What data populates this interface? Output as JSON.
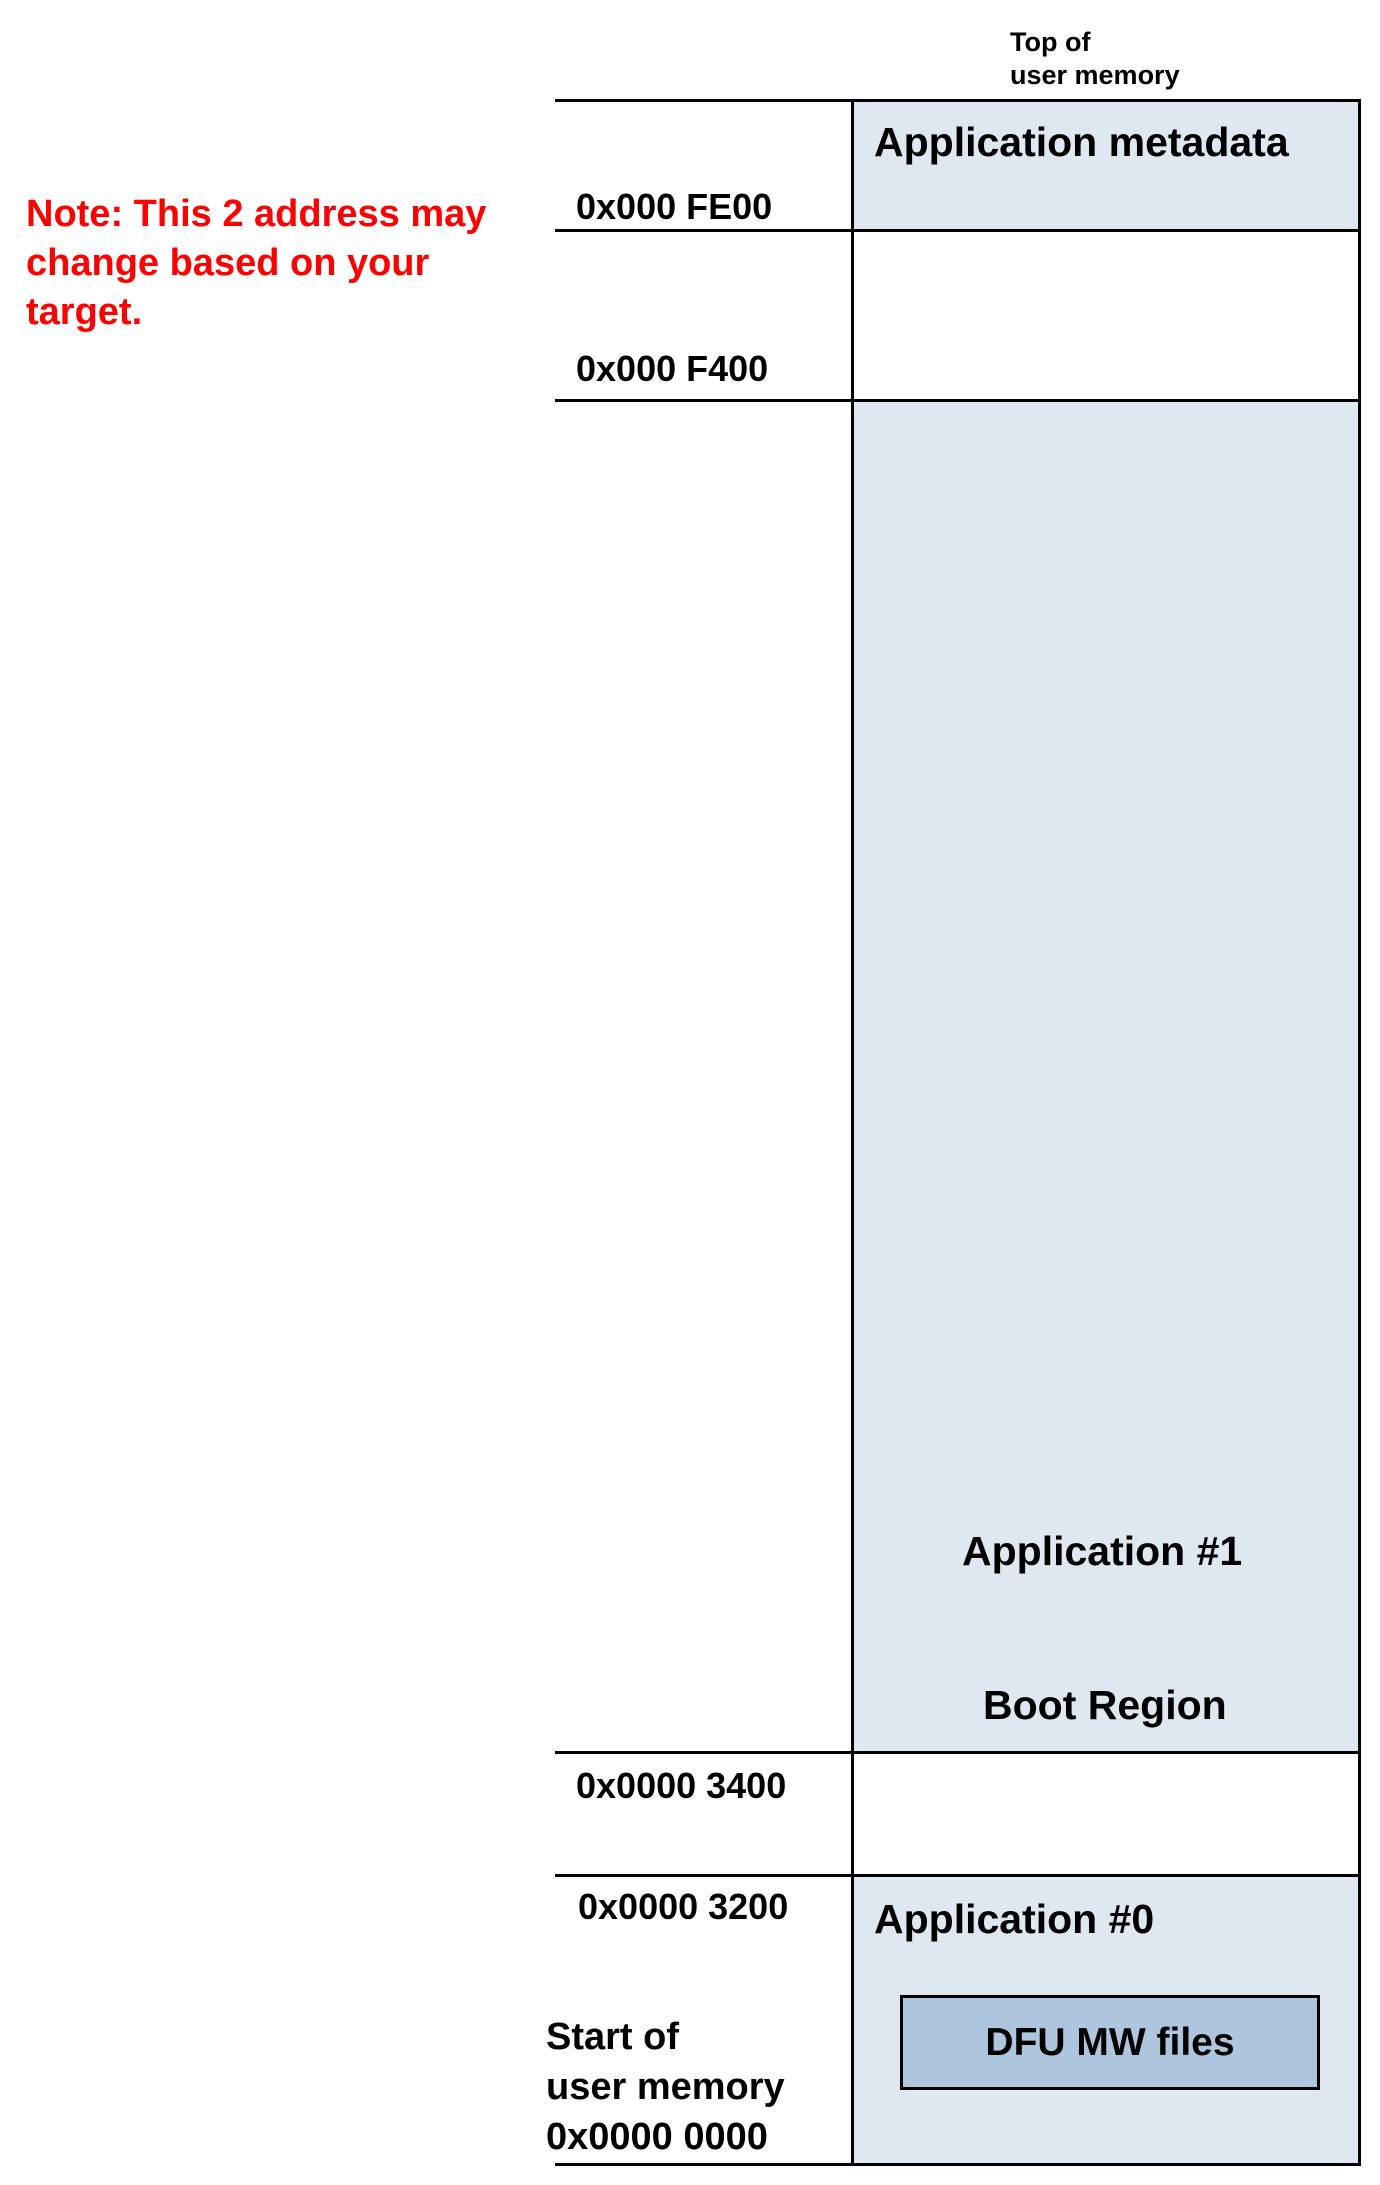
{
  "header": {
    "top_line1": "Top of",
    "top_line2": "user memory"
  },
  "note": {
    "line1": "Note: This 2 address may",
    "line2": "change based on your",
    "line3": "target.",
    "color": "#ff0000"
  },
  "addresses": {
    "fe00": "0x000 FE00",
    "f400": "0x000 F400",
    "a3400": "0x0000 3400",
    "a3200": "0x0000 3200"
  },
  "start": {
    "line1": "Start of",
    "line2": "user memory",
    "line3": "0x0000 0000"
  },
  "regions": {
    "metadata": "Application metadata",
    "app1": "Application #1",
    "boot": "Boot Region",
    "app0": "Application #0",
    "dfu": "DFU MW files"
  },
  "colors": {
    "region_fill": "#dfe8f1",
    "dfu_fill": "#adc6dd",
    "line": "#000000"
  }
}
